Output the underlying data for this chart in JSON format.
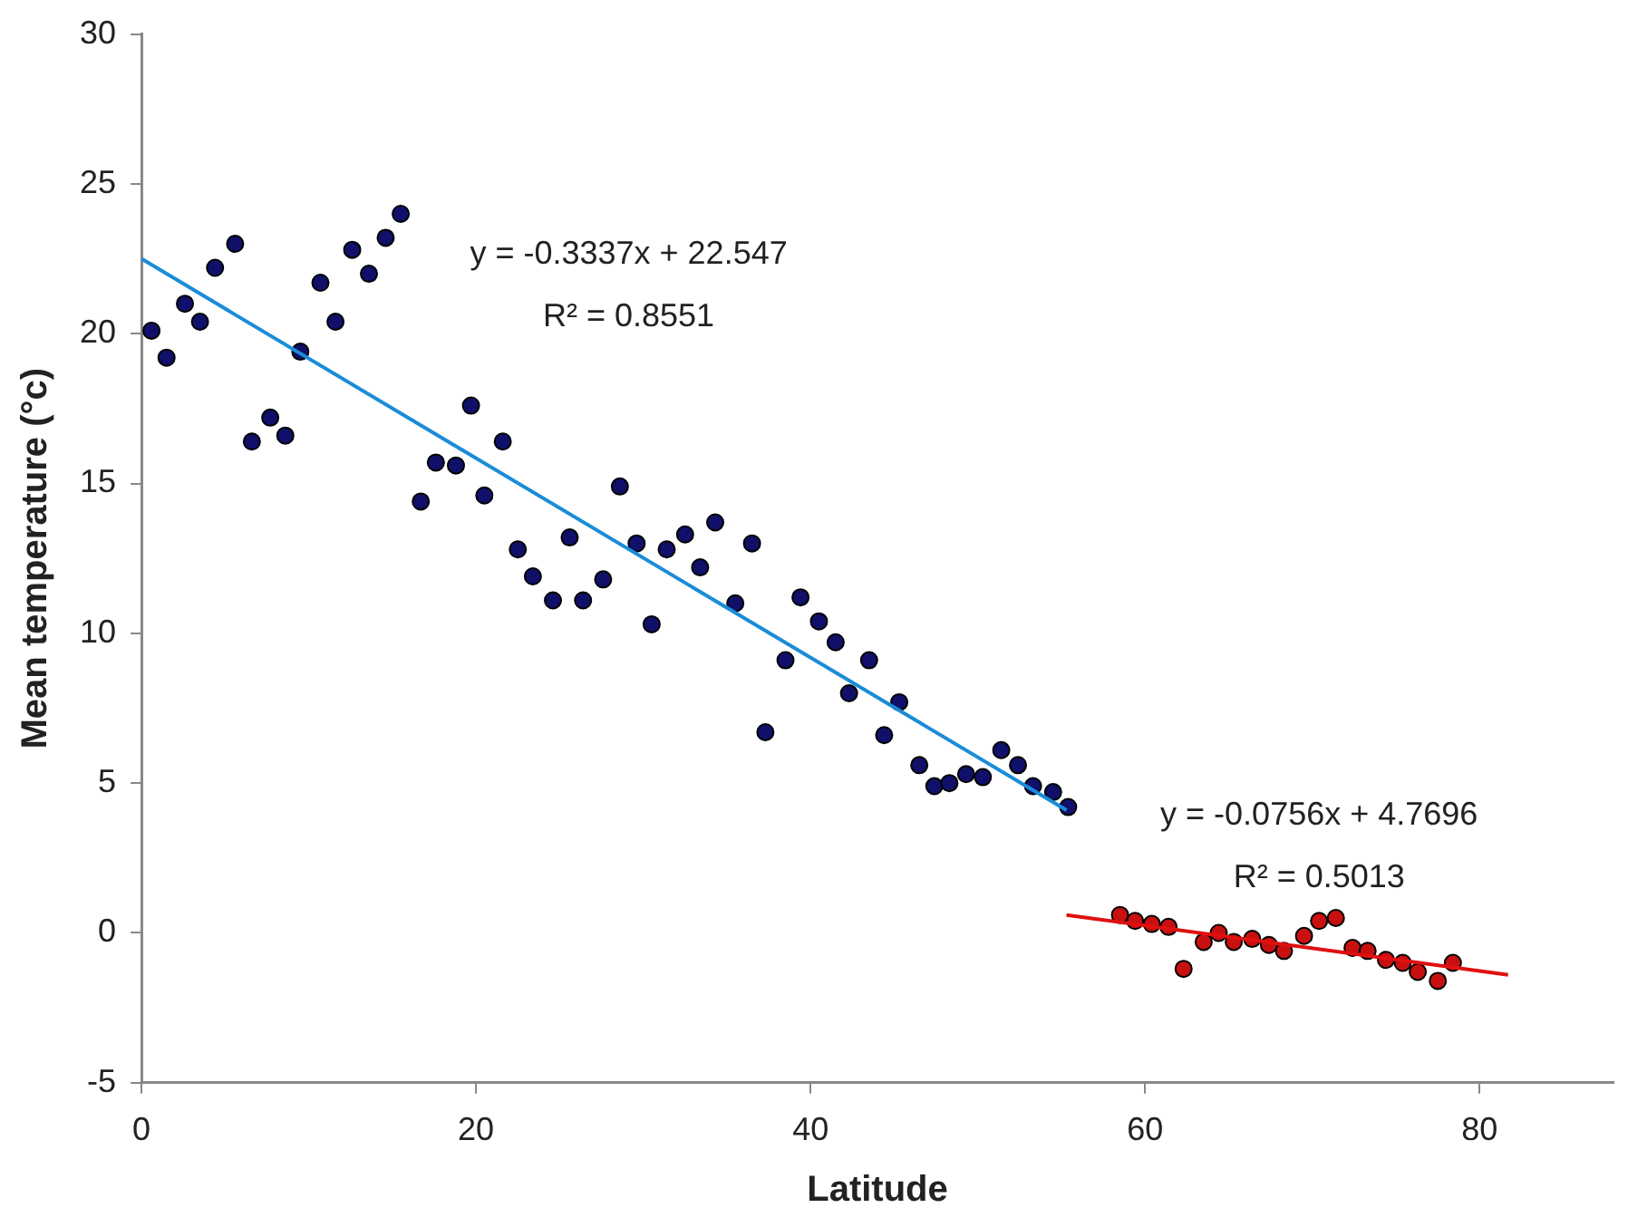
{
  "chart_data": {
    "type": "scatter",
    "xlabel": "Latitude",
    "ylabel": "Mean temperature (°c)",
    "xlim": [
      0,
      88
    ],
    "xticks": [
      0,
      20,
      40,
      60,
      80
    ],
    "ylim": [
      -5,
      30
    ],
    "yticks": [
      -5,
      0,
      5,
      10,
      15,
      20,
      25,
      30
    ],
    "grid": false,
    "legend": false,
    "series": [
      {
        "color": "#10106a",
        "x": [
          0.6,
          1.5,
          2.6,
          3.5,
          4.4,
          5.6,
          6.6,
          7.7,
          8.6,
          9.5,
          10.7,
          11.6,
          12.6,
          13.6,
          14.6,
          15.5,
          16.7,
          17.6,
          18.8,
          19.7,
          20.5,
          21.6,
          22.5,
          23.4,
          24.6,
          25.6,
          26.4,
          27.6,
          28.6,
          29.6,
          30.5,
          31.4,
          32.5,
          33.4,
          34.3,
          35.5,
          36.5,
          37.3,
          38.5,
          39.4,
          40.5,
          41.5,
          42.3,
          43.5,
          44.4,
          45.3,
          46.5,
          47.4,
          48.3,
          49.3,
          50.3,
          51.4,
          52.4,
          53.3,
          54.5,
          55.4
        ],
        "values": [
          20.1,
          19.2,
          21.0,
          20.4,
          22.2,
          23.0,
          16.4,
          17.2,
          16.6,
          19.4,
          21.7,
          20.4,
          22.8,
          22.0,
          23.2,
          24.0,
          14.4,
          15.7,
          15.6,
          17.6,
          14.6,
          16.4,
          12.8,
          11.9,
          11.1,
          13.2,
          11.1,
          11.8,
          14.9,
          13.0,
          10.3,
          12.8,
          13.3,
          12.2,
          13.7,
          11.0,
          13.0,
          6.7,
          9.1,
          11.2,
          10.4,
          9.7,
          8.0,
          9.1,
          6.6,
          7.7,
          5.6,
          4.9,
          5.0,
          5.3,
          5.2,
          6.1,
          5.6,
          4.9,
          4.7,
          4.2
        ]
      },
      {
        "color": "#c81010",
        "x": [
          58.5,
          59.4,
          60.4,
          61.4,
          62.3,
          63.5,
          64.4,
          65.3,
          66.4,
          67.4,
          68.3,
          69.5,
          70.4,
          71.4,
          72.4,
          73.3,
          74.4,
          75.4,
          76.3,
          77.5,
          78.4
        ],
        "values": [
          0.6,
          0.4,
          0.3,
          0.2,
          -1.2,
          -0.3,
          0.0,
          -0.3,
          -0.2,
          -0.4,
          -0.6,
          -0.1,
          0.4,
          0.5,
          -0.5,
          -0.6,
          -0.9,
          -1.0,
          -1.3,
          -1.6,
          -1.0
        ]
      },
      {
        "type": "line",
        "color": "#1a8cd8",
        "x": [
          0,
          55.3
        ],
        "values": [
          22.5,
          4.1
        ]
      },
      {
        "type": "line",
        "color": "#e01010",
        "x": [
          55.3,
          81.7
        ],
        "values": [
          0.6,
          -1.4
        ]
      }
    ],
    "annotations": [
      "y = -0.3337x + 22.547",
      "R² = 0.8551",
      "y = -0.0756x + 4.7696",
      "R² = 0.5013"
    ]
  }
}
